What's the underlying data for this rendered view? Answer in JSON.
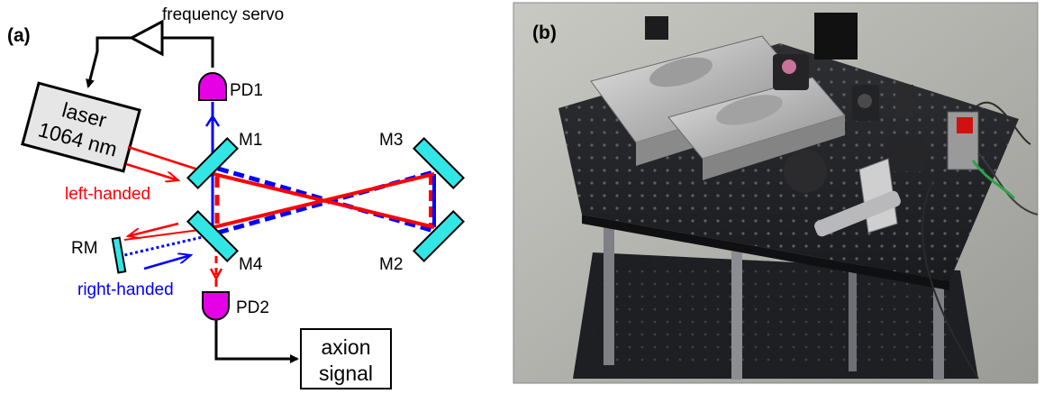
{
  "panel_a": {
    "label": "(a)",
    "servo": "frequency servo",
    "laser_line1": "laser",
    "laser_line2": "1064 nm",
    "pd1": "PD1",
    "pd2": "PD2",
    "m1": "M1",
    "m2": "M2",
    "m3": "M3",
    "m4": "M4",
    "rm": "RM",
    "left_handed": "left-handed",
    "right_handed": "right-handed",
    "axion_line1": "axion",
    "axion_line2": "signal"
  },
  "panel_b": {
    "label": "(b)"
  },
  "colors": {
    "red_beam": "#ff0000",
    "blue_beam": "#0000ff",
    "mirror": "#33e6e6",
    "photodiode": "#e600e6",
    "laser_box": "#e6e6e6"
  }
}
